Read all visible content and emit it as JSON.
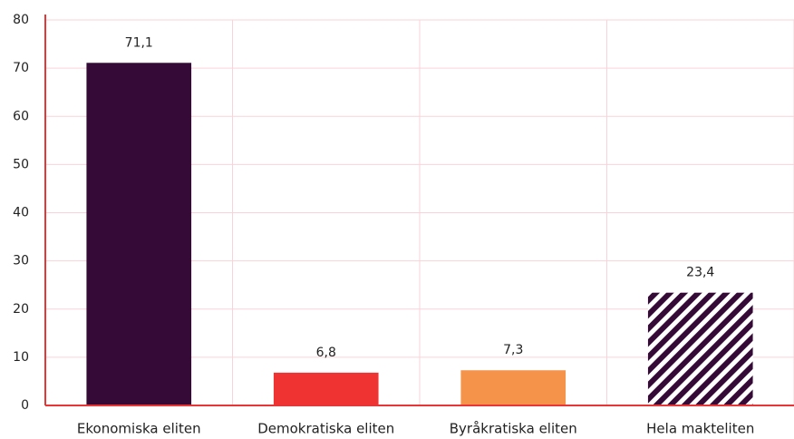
{
  "chart_data": {
    "type": "bar",
    "categories": [
      "Ekonomiska eliten",
      "Demokratiska eliten",
      "Byråkratiska eliten",
      "Hela makteliten"
    ],
    "values": [
      71.1,
      6.8,
      7.3,
      23.4
    ],
    "value_labels": [
      "71,1",
      "6,8",
      "7,3",
      "23,4"
    ],
    "colors": [
      "#350a37",
      "#ef3232",
      "#f5934b",
      "#350a37"
    ],
    "hatch": [
      false,
      false,
      false,
      true
    ],
    "ylim": [
      0,
      80
    ],
    "yticks": [
      0,
      10,
      20,
      30,
      40,
      50,
      60,
      70,
      80
    ],
    "grid": true
  }
}
